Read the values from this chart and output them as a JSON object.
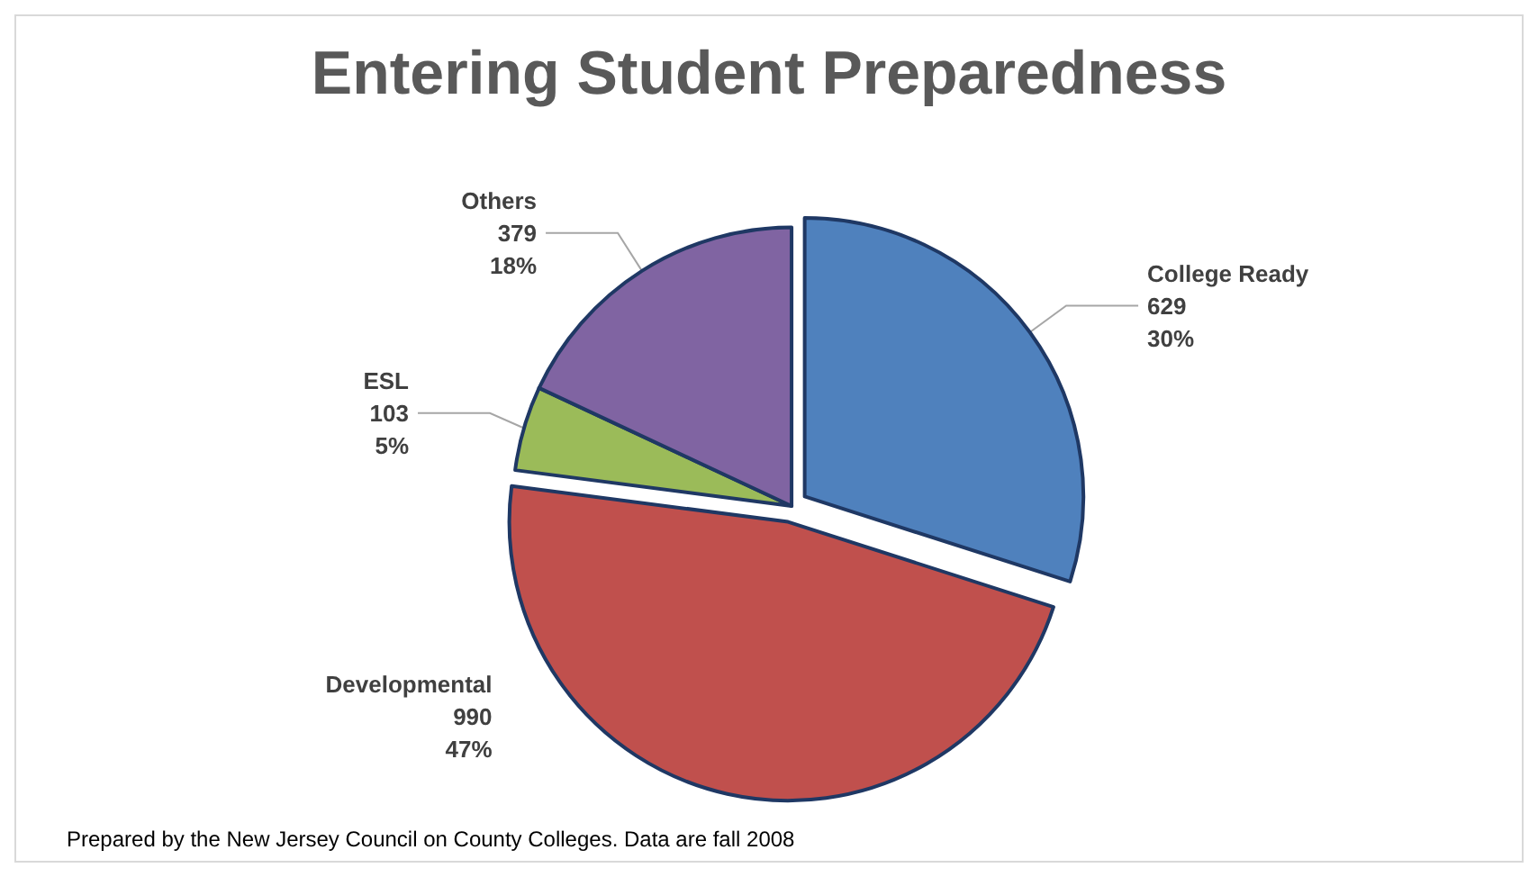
{
  "chart_data": {
    "type": "pie",
    "title": "Entering Student Preparedness",
    "categories": [
      "College Ready",
      "Developmental",
      "ESL",
      "Others"
    ],
    "values": [
      629,
      990,
      103,
      379
    ],
    "value_labels": [
      "629\n30%",
      "990\n47%",
      "103\n5%",
      "379\n18%"
    ],
    "colors": [
      "#4f81bd",
      "#c0504d",
      "#9bbb59",
      "#8064a2"
    ],
    "legend": false,
    "annotations": [
      "Prepared by the New Jersey Council on County Colleges. Data are fall 2008"
    ]
  }
}
